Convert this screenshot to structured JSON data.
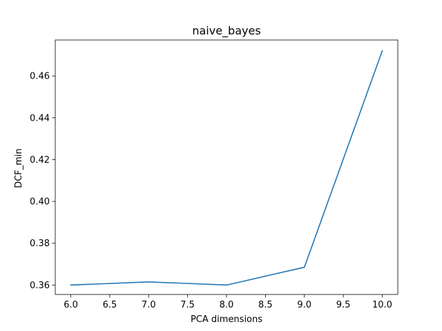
{
  "chart_data": {
    "type": "line",
    "title": "naive_bayes",
    "xlabel": "PCA dimensions",
    "ylabel": "DCF_min",
    "x": [
      6,
      7,
      8,
      9,
      10
    ],
    "series": [
      {
        "values": [
          0.36,
          0.3615,
          0.36,
          0.3685,
          0.472
        ]
      }
    ],
    "xlim": [
      5.8,
      10.2
    ],
    "ylim": [
      0.3555,
      0.4772
    ],
    "x_ticks": [
      6.0,
      6.5,
      7.0,
      7.5,
      8.0,
      8.5,
      9.0,
      9.5,
      10.0
    ],
    "x_tick_labels": [
      "6.0",
      "6.5",
      "7.0",
      "7.5",
      "8.0",
      "8.5",
      "9.0",
      "9.5",
      "10.0"
    ],
    "y_ticks": [
      0.36,
      0.38,
      0.4,
      0.42,
      0.44,
      0.46
    ],
    "y_tick_labels": [
      "0.36",
      "0.38",
      "0.40",
      "0.42",
      "0.44",
      "0.46"
    ],
    "grid": false,
    "line_color": "#1f77b4"
  }
}
